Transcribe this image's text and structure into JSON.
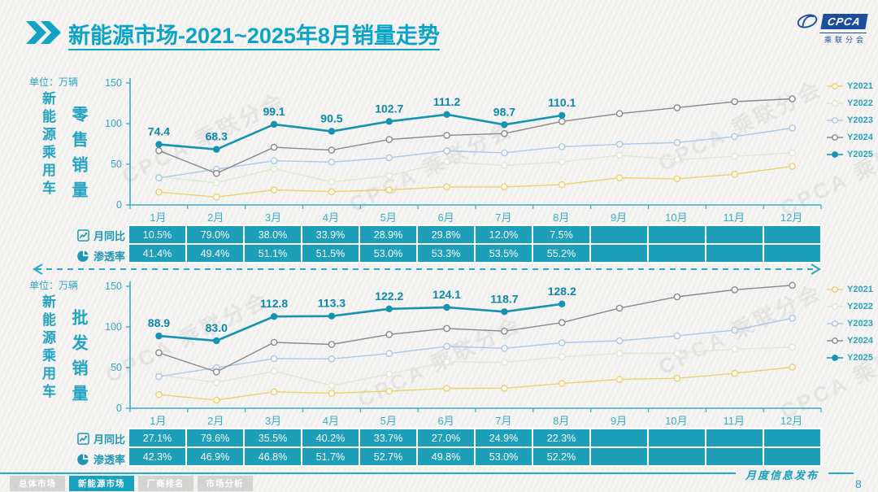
{
  "header": {
    "title_bold": "新能源市场",
    "title_rest": "-2021~2025年8月销量走势",
    "logo": {
      "brand": "CPCA",
      "brand_cn": "乘联分会"
    }
  },
  "watermark_text": "CPCA 乘联分会",
  "sections": [
    {
      "unit": "单位：万辆",
      "group_label": "新能源乘用车",
      "measure_label": "零售销量",
      "rows": [
        {
          "icon": "line-chart-icon",
          "label": "月同比",
          "values": [
            "10.5%",
            "79.0%",
            "38.0%",
            "33.9%",
            "28.9%",
            "29.8%",
            "12.0%",
            "7.5%",
            "",
            "",
            "",
            ""
          ]
        },
        {
          "icon": "pie-chart-icon",
          "label": "渗透率",
          "values": [
            "41.4%",
            "49.4%",
            "51.1%",
            "51.5%",
            "53.0%",
            "53.3%",
            "53.5%",
            "55.2%",
            "",
            "",
            "",
            ""
          ]
        }
      ]
    },
    {
      "unit": "单位：万辆",
      "group_label": "新能源乘用车",
      "measure_label": "批发销量",
      "rows": [
        {
          "icon": "line-chart-icon",
          "label": "月同比",
          "values": [
            "27.1%",
            "79.6%",
            "35.5%",
            "40.2%",
            "33.7%",
            "27.0%",
            "24.9%",
            "22.3%",
            "",
            "",
            "",
            ""
          ]
        },
        {
          "icon": "pie-chart-icon",
          "label": "渗透率",
          "values": [
            "42.3%",
            "46.9%",
            "46.8%",
            "51.7%",
            "52.7%",
            "49.8%",
            "53.0%",
            "52.2%",
            "",
            "",
            "",
            ""
          ]
        }
      ]
    }
  ],
  "chart_data": [
    {
      "type": "line",
      "title": "新能源乘用车零售销量",
      "unit": "万辆",
      "categories": [
        "1月",
        "2月",
        "3月",
        "4月",
        "5月",
        "6月",
        "7月",
        "8月",
        "9月",
        "10月",
        "11月",
        "12月"
      ],
      "ylim": [
        0,
        150
      ],
      "yticks": [
        0,
        50,
        100,
        150
      ],
      "legend_position": "right",
      "grid": false,
      "series": [
        {
          "name": "Y2021",
          "color": "#f0cf6d",
          "marker": "open",
          "values": [
            15.8,
            9.7,
            18.5,
            16.3,
            18.5,
            22.3,
            22.2,
            24.9,
            33.4,
            32.1,
            37.8,
            47.5
          ]
        },
        {
          "name": "Y2022",
          "color": "#dcead0",
          "marker": "open",
          "values": [
            34.7,
            27.2,
            44.5,
            28.2,
            36.0,
            53.2,
            48.6,
            52.9,
            61.1,
            55.6,
            59.8,
            64.0
          ]
        },
        {
          "name": "Y2023",
          "color": "#a9c8ea",
          "marker": "open",
          "values": [
            33.2,
            43.9,
            54.3,
            52.7,
            58.0,
            66.5,
            64.1,
            71.6,
            74.6,
            76.7,
            84.1,
            94.5
          ]
        },
        {
          "name": "Y2024",
          "color": "#8a8a8a",
          "marker": "open",
          "values": [
            66.8,
            38.8,
            70.9,
            67.4,
            80.4,
            85.6,
            87.8,
            102.7,
            112.3,
            119.6,
            127.0,
            130.5
          ]
        },
        {
          "name": "Y2025",
          "color": "#1593b3",
          "marker": "filled",
          "show_labels": true,
          "values": [
            74.4,
            68.3,
            99.1,
            90.5,
            102.7,
            111.2,
            98.7,
            110.1
          ]
        }
      ]
    },
    {
      "type": "line",
      "title": "新能源乘用车批发销量",
      "unit": "万辆",
      "categories": [
        "1月",
        "2月",
        "3月",
        "4月",
        "5月",
        "6月",
        "7月",
        "8月",
        "9月",
        "10月",
        "11月",
        "12月"
      ],
      "ylim": [
        0,
        150
      ],
      "yticks": [
        0,
        50,
        100,
        150
      ],
      "legend_position": "right",
      "grid": false,
      "series": [
        {
          "name": "Y2021",
          "color": "#f0cf6d",
          "marker": "open",
          "values": [
            16.8,
            10.0,
            20.2,
            18.4,
            21.0,
            24.5,
            24.6,
            30.4,
            35.5,
            36.8,
            42.9,
            50.5
          ]
        },
        {
          "name": "Y2022",
          "color": "#dcead0",
          "marker": "open",
          "values": [
            41.2,
            31.7,
            45.5,
            28.0,
            42.1,
            57.1,
            56.4,
            63.2,
            67.5,
            67.6,
            72.8,
            75.0
          ]
        },
        {
          "name": "Y2023",
          "color": "#a9c8ea",
          "marker": "open",
          "values": [
            38.9,
            49.8,
            61.1,
            60.7,
            67.3,
            76.1,
            73.7,
            80.5,
            83.0,
            89.1,
            96.0,
            110.8
          ]
        },
        {
          "name": "Y2024",
          "color": "#8a8a8a",
          "marker": "open",
          "values": [
            68.2,
            44.7,
            81.0,
            78.5,
            90.7,
            98.1,
            94.8,
            105.3,
            123.1,
            137.0,
            145.7,
            151.2
          ]
        },
        {
          "name": "Y2025",
          "color": "#1593b3",
          "marker": "filled",
          "show_labels": true,
          "values": [
            88.9,
            83.0,
            112.8,
            113.3,
            122.2,
            124.1,
            118.7,
            128.2
          ]
        }
      ]
    }
  ],
  "footer": {
    "tabs": [
      {
        "label": "总体市场",
        "active": false
      },
      {
        "label": "新能源市场",
        "active": true
      },
      {
        "label": "厂商排名",
        "active": false
      },
      {
        "label": "市场分析",
        "active": false
      }
    ],
    "publication": "月度信息发布",
    "page": "8"
  },
  "colors": {
    "primary_teal": "#0ba4c6",
    "table_cell": "#1d9fba",
    "axis": "#3aabc8",
    "logo_navy": "#1d4e9e",
    "y2021": "#f0cf6d",
    "y2022": "#dcead0",
    "y2023": "#a9c8ea",
    "y2024": "#8a8a8a",
    "y2025": "#1593b3"
  }
}
